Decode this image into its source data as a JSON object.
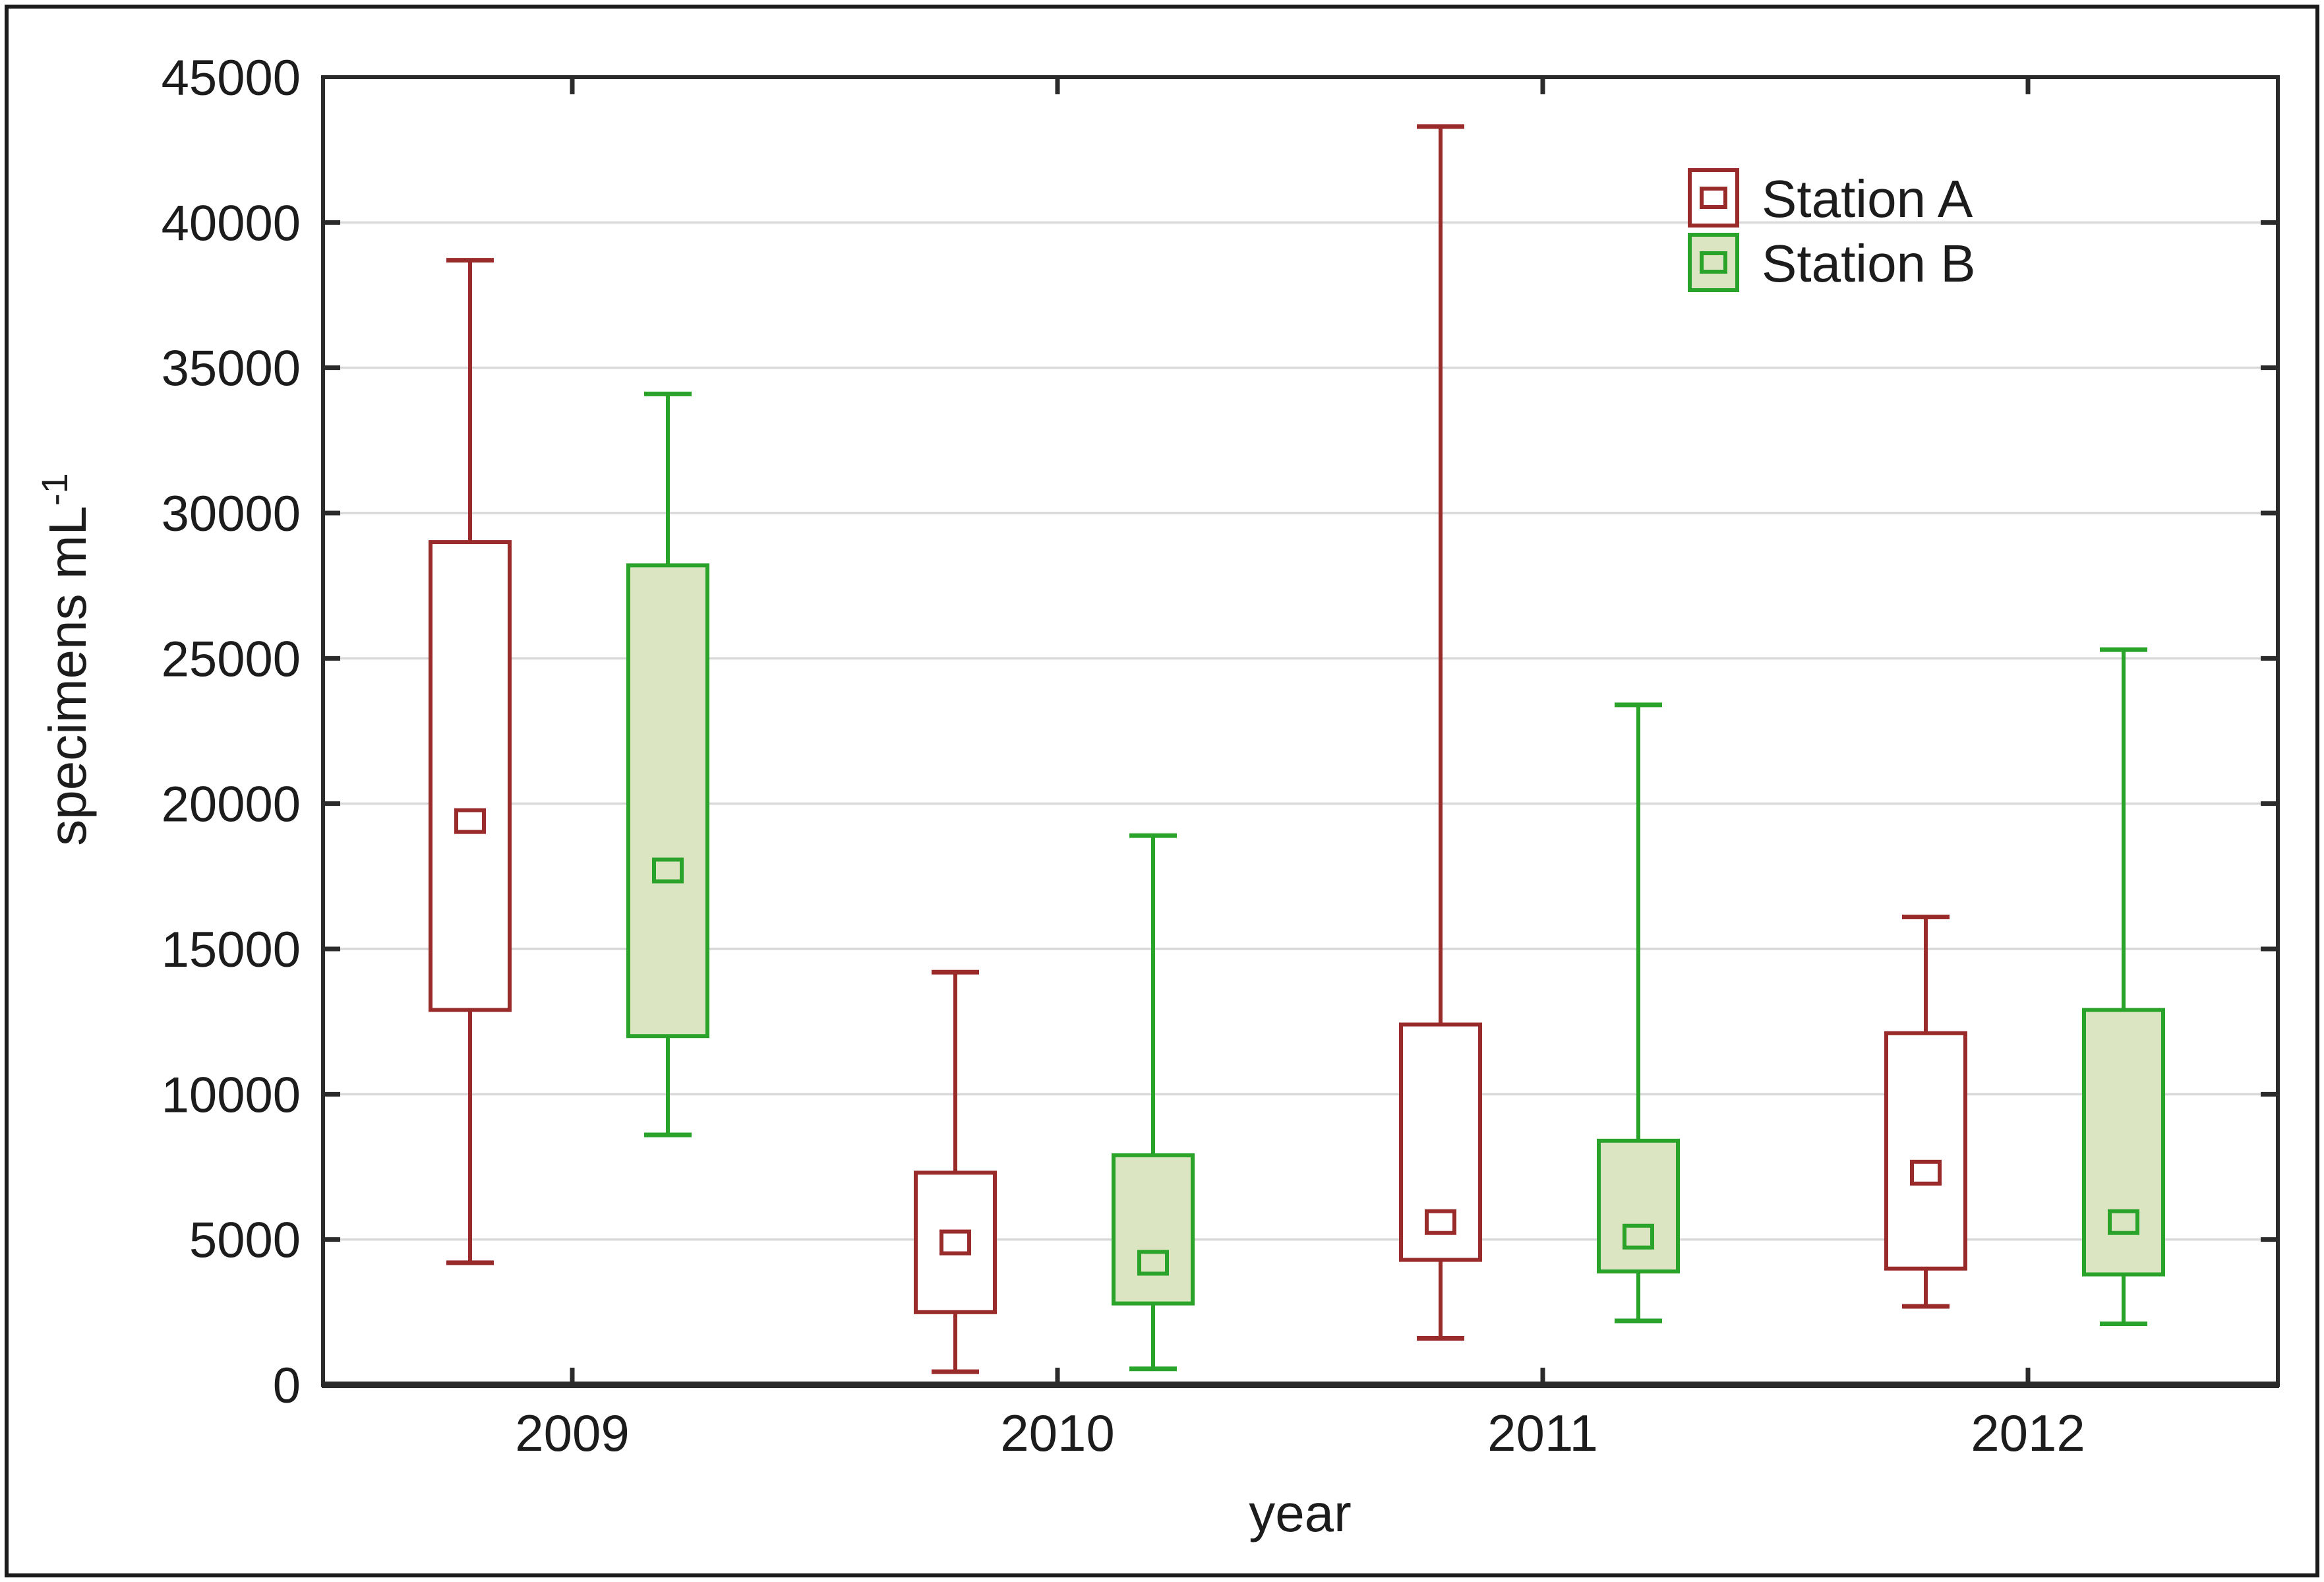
{
  "figure": {
    "background": "#ffffff",
    "outer_border_color": "#1a1a1a",
    "axis_color": "#2b2b2b",
    "gridline_color": "#d8d8d8",
    "text_color": "#1c1c1c"
  },
  "chart_data": {
    "type": "boxplot",
    "title": "",
    "xlabel": "year",
    "ylabel": {
      "text": "specimens mL",
      "superscript": "-1"
    },
    "categories": [
      "2009",
      "2010",
      "2011",
      "2012"
    ],
    "y_axis": {
      "min": 0,
      "max": 45000,
      "tick_step": 5000,
      "ticks": [
        "0",
        "5000",
        "10000",
        "15000",
        "20000",
        "25000",
        "30000",
        "35000",
        "40000",
        "45000"
      ],
      "gridlines": true
    },
    "legend": {
      "position": "top-right"
    },
    "center_marker": "small open square",
    "whisker_style": "min-max with end caps",
    "series": [
      {
        "name": "Station A",
        "stroke": "#9a2b2b",
        "fill": "#ffffff",
        "boxes": [
          {
            "category": "2009",
            "min": 4200,
            "q1": 12900,
            "center": 19400,
            "q3": 29000,
            "max": 38700
          },
          {
            "category": "2010",
            "min": 450,
            "q1": 2500,
            "center": 4900,
            "q3": 7300,
            "max": 14200
          },
          {
            "category": "2011",
            "min": 1600,
            "q1": 4300,
            "center": 5600,
            "q3": 12400,
            "max": 43300
          },
          {
            "category": "2012",
            "min": 2700,
            "q1": 4000,
            "center": 7300,
            "q3": 12100,
            "max": 16100
          }
        ]
      },
      {
        "name": "Station B",
        "stroke": "#2aa32a",
        "fill": "#dce5c1",
        "boxes": [
          {
            "category": "2009",
            "min": 8600,
            "q1": 12000,
            "center": 17700,
            "q3": 28200,
            "max": 34100
          },
          {
            "category": "2010",
            "min": 550,
            "q1": 2800,
            "center": 4200,
            "q3": 7900,
            "max": 18900
          },
          {
            "category": "2011",
            "min": 2200,
            "q1": 3900,
            "center": 5100,
            "q3": 8400,
            "max": 23400
          },
          {
            "category": "2012",
            "min": 2100,
            "q1": 3800,
            "center": 5600,
            "q3": 12900,
            "max": 25300
          }
        ]
      }
    ]
  }
}
